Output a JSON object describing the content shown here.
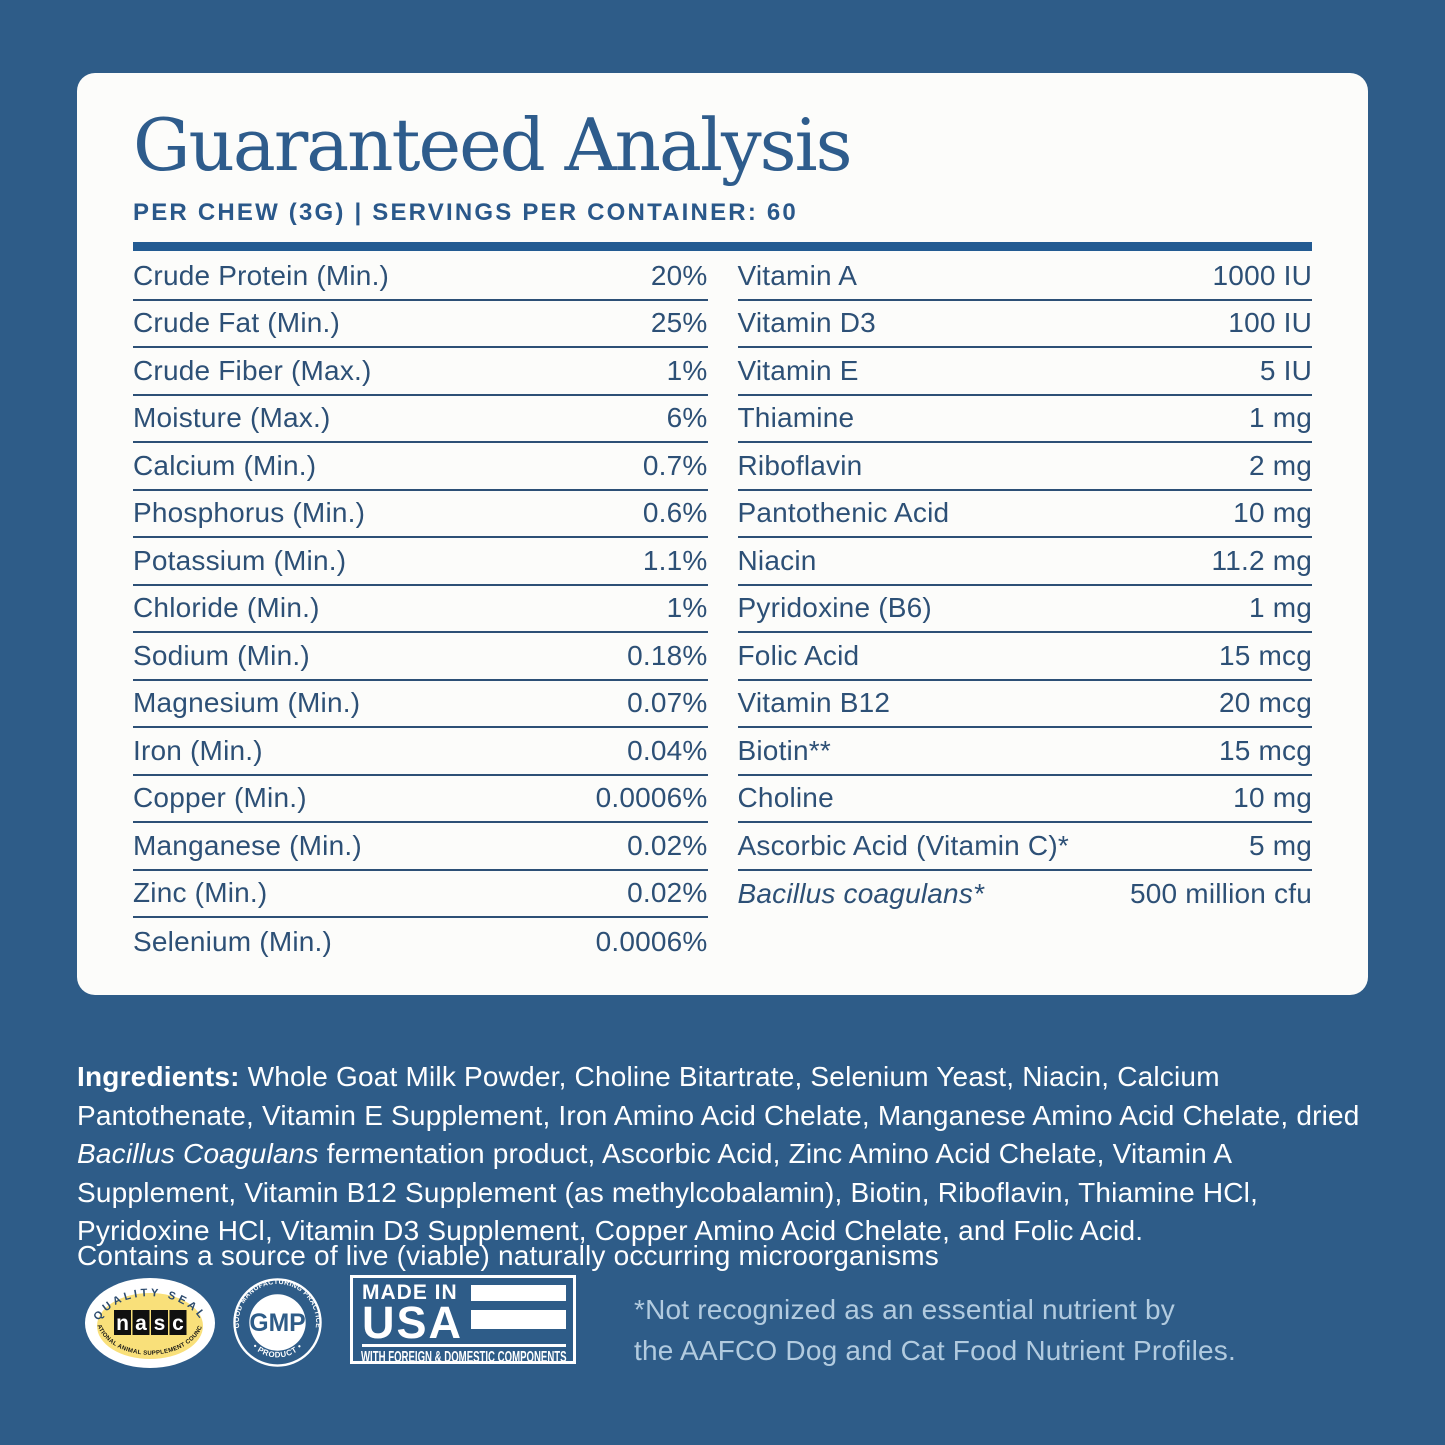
{
  "colors": {
    "background": "#2e5c88",
    "card": "#fcfcfa",
    "navy_text": "#2d5076",
    "title_navy": "#2e5c8c",
    "rule_navy": "#235b92",
    "footnote_blue": "#b2cbdf",
    "nasc_yellow": "#f9e07a",
    "white": "#ffffff"
  },
  "card": {
    "title": "Guaranteed Analysis",
    "subtitle": "PER CHEW (3G) | SERVINGS PER CONTAINER: 60",
    "left_rows": [
      {
        "label": "Crude Protein (Min.)",
        "value": "20%"
      },
      {
        "label": "Crude Fat (Min.)",
        "value": "25%"
      },
      {
        "label": "Crude Fiber (Max.)",
        "value": "1%"
      },
      {
        "label": "Moisture (Max.)",
        "value": "6%"
      },
      {
        "label": "Calcium (Min.)",
        "value": "0.7%"
      },
      {
        "label": "Phosphorus (Min.)",
        "value": "0.6%"
      },
      {
        "label": "Potassium (Min.)",
        "value": "1.1%"
      },
      {
        "label": "Chloride (Min.)",
        "value": "1%"
      },
      {
        "label": "Sodium (Min.)",
        "value": "0.18%"
      },
      {
        "label": "Magnesium (Min.)",
        "value": "0.07%"
      },
      {
        "label": "Iron (Min.)",
        "value": "0.04%"
      },
      {
        "label": "Copper (Min.)",
        "value": "0.0006%"
      },
      {
        "label": "Manganese (Min.)",
        "value": "0.02%"
      },
      {
        "label": "Zinc (Min.)",
        "value": "0.02%"
      },
      {
        "label": "Selenium (Min.)",
        "value": "0.0006%"
      }
    ],
    "right_rows": [
      {
        "label": "Vitamin A",
        "value": "1000 IU"
      },
      {
        "label": "Vitamin D3",
        "value": "100 IU"
      },
      {
        "label": "Vitamin E",
        "value": "5 IU"
      },
      {
        "label": "Thiamine",
        "value": "1 mg"
      },
      {
        "label": "Riboflavin",
        "value": "2 mg"
      },
      {
        "label": "Pantothenic Acid",
        "value": "10 mg"
      },
      {
        "label": "Niacin",
        "value": "11.2 mg"
      },
      {
        "label": "Pyridoxine (B6)",
        "value": "1 mg"
      },
      {
        "label": "Folic Acid",
        "value": "15 mcg"
      },
      {
        "label": "Vitamin B12",
        "value": "20 mcg"
      },
      {
        "label": "Biotin**",
        "value": "15 mcg"
      },
      {
        "label": "Choline",
        "value": "10 mg"
      },
      {
        "label": "Ascorbic Acid (Vitamin C)*",
        "value": "5 mg"
      },
      {
        "label": "Bacillus coagulans*",
        "value": "500 million cfu",
        "italic": true
      }
    ]
  },
  "ingredients": {
    "segments": [
      {
        "t": "Ingredients: ",
        "b": true
      },
      {
        "t": "Whole Goat Milk Powder, Choline Bitartrate, Selenium Yeast, Niacin, Calcium Pantothenate, Vitamin E Supplement, Iron Amino Acid Chelate, Manganese Amino Acid Chelate, dried "
      },
      {
        "t": "Bacillus Coagulans",
        "i": true
      },
      {
        "t": " fermentation product, Ascorbic Acid, Zinc Amino Acid Chelate, Vitamin A Supplement, Vitamin B12 Supplement (as methylcobalamin), Biotin, Riboflavin, Thiamine HCl, Pyridoxine HCl, Vitamin D3 Supplement, Copper Amino Acid Chelate, and Folic Acid."
      }
    ],
    "contains_note": "Contains a source of live (viable) naturally occurring microorganisms"
  },
  "badges": {
    "nasc": {
      "arc_top": "QUALITY SEAL",
      "logo": [
        "n",
        "a",
        "s",
        "c"
      ],
      "arc_bottom": "NATIONAL ANIMAL SUPPLEMENT COUNCIL"
    },
    "gmp": {
      "arc_top": "GOOD MANUFACTURING PRACTICE",
      "center": "GMP",
      "arc_bottom": "• PRODUCT •"
    },
    "usa": {
      "line1": "MADE IN",
      "line2": "USA",
      "line3": "WITH FOREIGN & DOMESTIC COMPONENTS"
    }
  },
  "footnote": {
    "line1": "*Not recognized as an essential nutrient by",
    "line2": "the AAFCO Dog and Cat Food Nutrient Profiles."
  }
}
